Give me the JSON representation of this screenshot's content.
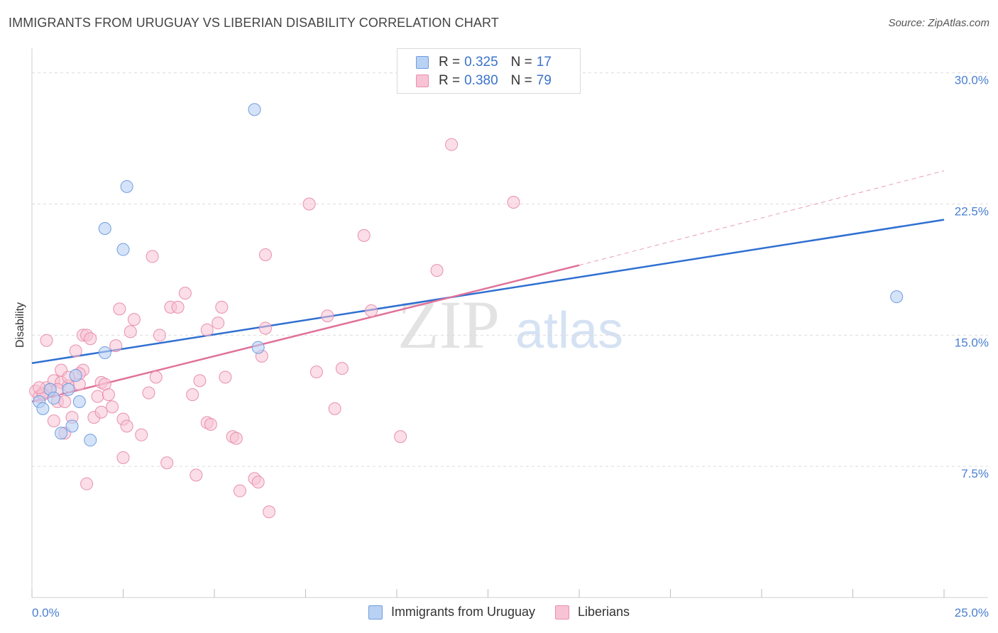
{
  "header": {
    "title": "IMMIGRANTS FROM URUGUAY VS LIBERIAN DISABILITY CORRELATION CHART",
    "source": "Source: ZipAtlas.com"
  },
  "legend": {
    "series1": {
      "r_label": "R =",
      "r_value": "0.325",
      "n_label": "N =",
      "n_value": "17"
    },
    "series2": {
      "r_label": "R =",
      "r_value": "0.380",
      "n_label": "N =",
      "n_value": "79"
    }
  },
  "bottom_legend": {
    "series1": "Immigrants from Uruguay",
    "series2": "Liberians"
  },
  "colors": {
    "blue_fill": "#b9d1f3",
    "blue_stroke": "#6f9de0",
    "blue_line": "#2f6fd1",
    "pink_fill": "#f8c3d4",
    "pink_stroke": "#e890ae",
    "pink_line": "#e0729a",
    "tick_text": "#4a7fd1"
  },
  "watermark": {
    "zip": "ZIP",
    "atlas": "atlas"
  },
  "chart_data": {
    "type": "scatter",
    "title": "IMMIGRANTS FROM URUGUAY VS LIBERIAN DISABILITY CORRELATION CHART",
    "xlabel": "",
    "ylabel": "Disability",
    "xlim": [
      0,
      25
    ],
    "ylim": [
      0,
      31
    ],
    "x_tick_labels": [
      "0.0%",
      "25.0%"
    ],
    "y_ticks": [
      7.5,
      15.0,
      22.5,
      30.0
    ],
    "y_tick_labels": [
      "7.5%",
      "15.0%",
      "22.5%",
      "30.0%"
    ],
    "grid": true,
    "series": [
      {
        "name": "Immigrants from Uruguay",
        "R": 0.325,
        "N": 17,
        "points": [
          [
            0.2,
            11.2
          ],
          [
            0.3,
            10.8
          ],
          [
            0.5,
            11.9
          ],
          [
            0.6,
            11.4
          ],
          [
            0.8,
            9.4
          ],
          [
            1.0,
            11.9
          ],
          [
            1.1,
            9.8
          ],
          [
            1.2,
            12.7
          ],
          [
            1.3,
            11.2
          ],
          [
            1.6,
            9.0
          ],
          [
            2.0,
            14.0
          ],
          [
            2.0,
            21.1
          ],
          [
            2.5,
            19.9
          ],
          [
            2.6,
            23.5
          ],
          [
            6.1,
            27.9
          ],
          [
            6.2,
            14.3
          ],
          [
            23.7,
            17.2
          ]
        ],
        "trend": {
          "x": [
            0,
            25
          ],
          "y": [
            13.4,
            21.6
          ]
        }
      },
      {
        "name": "Liberians",
        "R": 0.38,
        "N": 79,
        "points": [
          [
            0.1,
            11.8
          ],
          [
            0.2,
            11.5
          ],
          [
            0.3,
            11.7
          ],
          [
            0.4,
            12.0
          ],
          [
            0.4,
            14.7
          ],
          [
            0.5,
            11.9
          ],
          [
            0.6,
            10.1
          ],
          [
            0.6,
            12.4
          ],
          [
            0.7,
            11.2
          ],
          [
            0.8,
            13.0
          ],
          [
            0.8,
            12.3
          ],
          [
            0.9,
            9.4
          ],
          [
            0.9,
            11.2
          ],
          [
            1.0,
            12.1
          ],
          [
            1.0,
            12.6
          ],
          [
            1.1,
            10.3
          ],
          [
            1.2,
            14.1
          ],
          [
            1.3,
            12.2
          ],
          [
            1.4,
            13.0
          ],
          [
            1.4,
            15.0
          ],
          [
            1.5,
            15.0
          ],
          [
            1.6,
            14.8
          ],
          [
            1.7,
            10.3
          ],
          [
            1.8,
            11.5
          ],
          [
            1.9,
            10.6
          ],
          [
            1.9,
            12.3
          ],
          [
            2.0,
            12.2
          ],
          [
            2.1,
            11.6
          ],
          [
            2.2,
            10.9
          ],
          [
            2.3,
            14.4
          ],
          [
            2.4,
            16.5
          ],
          [
            2.5,
            8.0
          ],
          [
            2.5,
            10.2
          ],
          [
            2.6,
            9.8
          ],
          [
            2.7,
            15.2
          ],
          [
            2.8,
            15.9
          ],
          [
            3.0,
            9.3
          ],
          [
            3.2,
            11.7
          ],
          [
            3.3,
            19.5
          ],
          [
            3.4,
            12.6
          ],
          [
            3.5,
            15.0
          ],
          [
            3.7,
            7.7
          ],
          [
            3.8,
            16.6
          ],
          [
            4.0,
            16.6
          ],
          [
            4.2,
            17.4
          ],
          [
            4.4,
            11.6
          ],
          [
            4.5,
            7.0
          ],
          [
            4.6,
            12.4
          ],
          [
            4.8,
            15.3
          ],
          [
            4.8,
            10.0
          ],
          [
            4.9,
            9.9
          ],
          [
            5.1,
            15.7
          ],
          [
            5.2,
            16.6
          ],
          [
            5.3,
            12.6
          ],
          [
            5.5,
            9.2
          ],
          [
            5.6,
            9.1
          ],
          [
            5.7,
            6.1
          ],
          [
            6.1,
            6.8
          ],
          [
            6.2,
            6.6
          ],
          [
            6.3,
            13.8
          ],
          [
            6.4,
            15.4
          ],
          [
            6.4,
            19.6
          ],
          [
            6.5,
            4.9
          ],
          [
            7.6,
            22.5
          ],
          [
            7.8,
            12.9
          ],
          [
            8.1,
            16.1
          ],
          [
            8.3,
            10.8
          ],
          [
            8.5,
            13.1
          ],
          [
            9.1,
            20.7
          ],
          [
            1.5,
            6.5
          ],
          [
            9.3,
            16.4
          ],
          [
            10.1,
            9.2
          ],
          [
            11.1,
            18.7
          ],
          [
            11.5,
            25.9
          ],
          [
            13.2,
            22.6
          ],
          [
            0.3,
            11.6
          ],
          [
            1.3,
            12.8
          ],
          [
            0.7,
            11.9
          ],
          [
            0.2,
            12.0
          ]
        ],
        "trend": {
          "x": [
            0,
            15
          ],
          "y": [
            11.2,
            19.0
          ]
        },
        "trend_extension": {
          "x": [
            15,
            25
          ],
          "y": [
            19.0,
            24.4
          ]
        }
      }
    ]
  }
}
